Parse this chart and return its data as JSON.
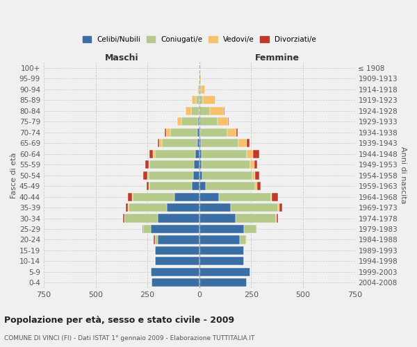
{
  "age_groups": [
    "0-4",
    "5-9",
    "10-14",
    "15-19",
    "20-24",
    "25-29",
    "30-34",
    "35-39",
    "40-44",
    "45-49",
    "50-54",
    "55-59",
    "60-64",
    "65-69",
    "70-74",
    "75-79",
    "80-84",
    "85-89",
    "90-94",
    "95-99",
    "100+"
  ],
  "birth_years": [
    "2004-2008",
    "1999-2003",
    "1994-1998",
    "1989-1993",
    "1984-1988",
    "1979-1983",
    "1974-1978",
    "1969-1973",
    "1964-1968",
    "1959-1963",
    "1954-1958",
    "1949-1953",
    "1944-1948",
    "1939-1943",
    "1934-1938",
    "1929-1933",
    "1924-1928",
    "1919-1923",
    "1914-1918",
    "1909-1913",
    "≤ 1908"
  ],
  "male_celibi": [
    230,
    235,
    215,
    215,
    200,
    235,
    200,
    155,
    120,
    35,
    30,
    25,
    20,
    10,
    10,
    5,
    0,
    0,
    0,
    0,
    0
  ],
  "male_coniugati": [
    0,
    0,
    0,
    0,
    15,
    35,
    160,
    185,
    200,
    205,
    215,
    215,
    195,
    170,
    130,
    80,
    40,
    15,
    5,
    2,
    0
  ],
  "male_vedovi": [
    0,
    0,
    0,
    0,
    0,
    0,
    2,
    3,
    5,
    3,
    5,
    5,
    8,
    15,
    20,
    20,
    25,
    20,
    5,
    2,
    0
  ],
  "male_divorziati": [
    0,
    0,
    0,
    0,
    5,
    5,
    5,
    12,
    20,
    12,
    20,
    15,
    18,
    5,
    8,
    0,
    0,
    0,
    0,
    0,
    0
  ],
  "female_celibi": [
    230,
    245,
    215,
    215,
    195,
    215,
    175,
    150,
    95,
    30,
    15,
    10,
    10,
    8,
    5,
    2,
    2,
    2,
    2,
    0,
    0
  ],
  "female_coniugati": [
    0,
    0,
    0,
    0,
    30,
    60,
    195,
    230,
    250,
    240,
    240,
    235,
    220,
    180,
    130,
    85,
    50,
    15,
    5,
    2,
    0
  ],
  "female_vedovi": [
    0,
    0,
    0,
    0,
    2,
    3,
    3,
    5,
    5,
    10,
    15,
    20,
    30,
    40,
    45,
    50,
    65,
    60,
    20,
    5,
    2
  ],
  "female_divorziati": [
    0,
    0,
    0,
    0,
    0,
    0,
    5,
    15,
    30,
    15,
    20,
    15,
    30,
    15,
    5,
    5,
    5,
    0,
    0,
    0,
    0
  ],
  "color_celibi": "#3a6ea5",
  "color_coniugati": "#b5c98a",
  "color_vedovi": "#f5c16c",
  "color_divorziati": "#c0392b",
  "bg_color": "#f0f0f0",
  "grid_color": "#cccccc",
  "title": "Popolazione per età, sesso e stato civile - 2009",
  "subtitle": "COMUNE DI VINCI (FI) - Dati ISTAT 1° gennaio 2009 - Elaborazione TUTTITALIA.IT",
  "xlabel_left": "Maschi",
  "xlabel_right": "Femmine",
  "ylabel_left": "Fasce di età",
  "ylabel_right": "Anni di nascita",
  "xlim": 750
}
